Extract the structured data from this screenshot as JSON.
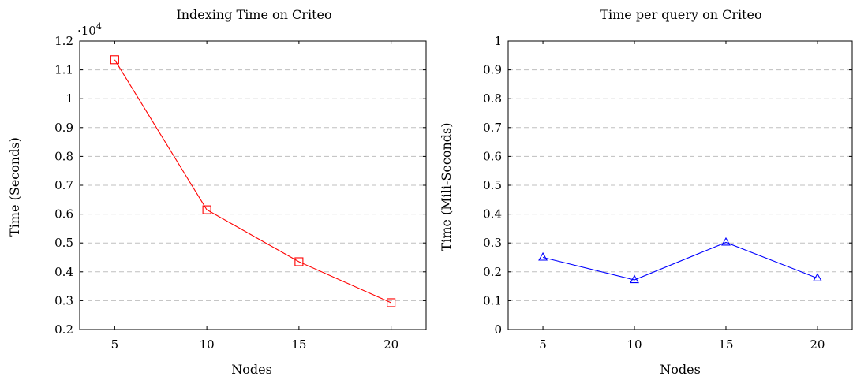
{
  "chart_data": [
    {
      "type": "line",
      "title": "Indexing Time on Criteo",
      "xlabel": "Nodes",
      "ylabel": "Time (Seconds)",
      "y_scale_label": "·10^4",
      "y_scale_base": "·10",
      "y_scale_exp": "4",
      "x": [
        5,
        10,
        15,
        20
      ],
      "xlim": [
        3.1,
        21.9
      ],
      "x_ticks": [
        "5",
        "10",
        "15",
        "20"
      ],
      "ylim": [
        0.2,
        1.2
      ],
      "y_ticks": [
        "0.2",
        "0.3",
        "0.4",
        "0.5",
        "0.6",
        "0.7",
        "0.8",
        "0.9",
        "1",
        "1.1",
        "1.2"
      ],
      "grid": "horizontal dashed",
      "series": [
        {
          "values": [
            1.135,
            0.615,
            0.435,
            0.293
          ],
          "color": "#ff0000",
          "marker": "square"
        }
      ]
    },
    {
      "type": "line",
      "title": "Time per query on Criteo",
      "xlabel": "Nodes",
      "ylabel": "Time (Mili-Seconds)",
      "x": [
        5,
        10,
        15,
        20
      ],
      "xlim": [
        3.1,
        21.9
      ],
      "x_ticks": [
        "5",
        "10",
        "15",
        "20"
      ],
      "ylim": [
        0,
        1
      ],
      "y_ticks": [
        "0",
        "0.1",
        "0.2",
        "0.3",
        "0.4",
        "0.5",
        "0.6",
        "0.7",
        "0.8",
        "0.9",
        "1"
      ],
      "grid": "horizontal dashed",
      "series": [
        {
          "values": [
            0.25,
            0.172,
            0.302,
            0.178
          ],
          "color": "#0000ff",
          "marker": "triangle"
        }
      ]
    }
  ]
}
